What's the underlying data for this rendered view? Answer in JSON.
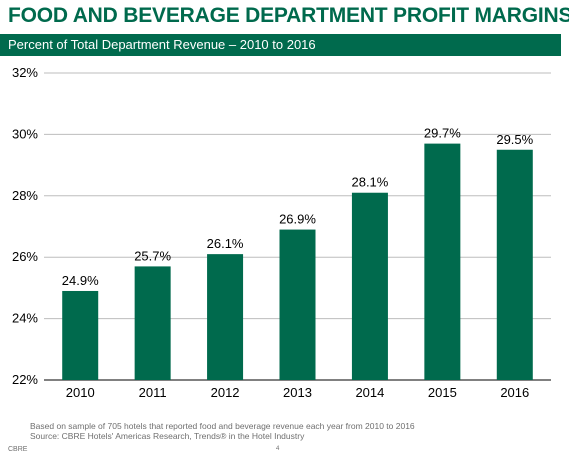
{
  "header": {
    "title": "FOOD AND BEVERAGE DEPARTMENT PROFIT MARGINS",
    "subtitle": "Percent of Total Department Revenue – 2010 to 2016"
  },
  "chart_data": {
    "type": "bar",
    "categories": [
      "2010",
      "2011",
      "2012",
      "2013",
      "2014",
      "2015",
      "2016"
    ],
    "values": [
      24.9,
      25.7,
      26.1,
      26.9,
      28.1,
      29.7,
      29.5
    ],
    "data_labels": [
      "24.9%",
      "25.7%",
      "26.1%",
      "26.9%",
      "28.1%",
      "29.7%",
      "29.5%"
    ],
    "y_ticks": [
      22,
      24,
      26,
      28,
      30,
      32
    ],
    "y_tick_labels": [
      "22%",
      "24%",
      "26%",
      "28%",
      "30%",
      "32%"
    ],
    "ylim": [
      22,
      32
    ],
    "grid": true,
    "bar_color": "#006a4d"
  },
  "footnote": {
    "line1": "Based on sample of 705 hotels that reported food and beverage revenue each year from 2010 to 2016",
    "line2": "Source: CBRE Hotels' Americas Research, Trends® in the Hotel Industry"
  },
  "footer": {
    "brand": "CBRE",
    "page": "4"
  },
  "colors": {
    "accent": "#006a4d"
  }
}
